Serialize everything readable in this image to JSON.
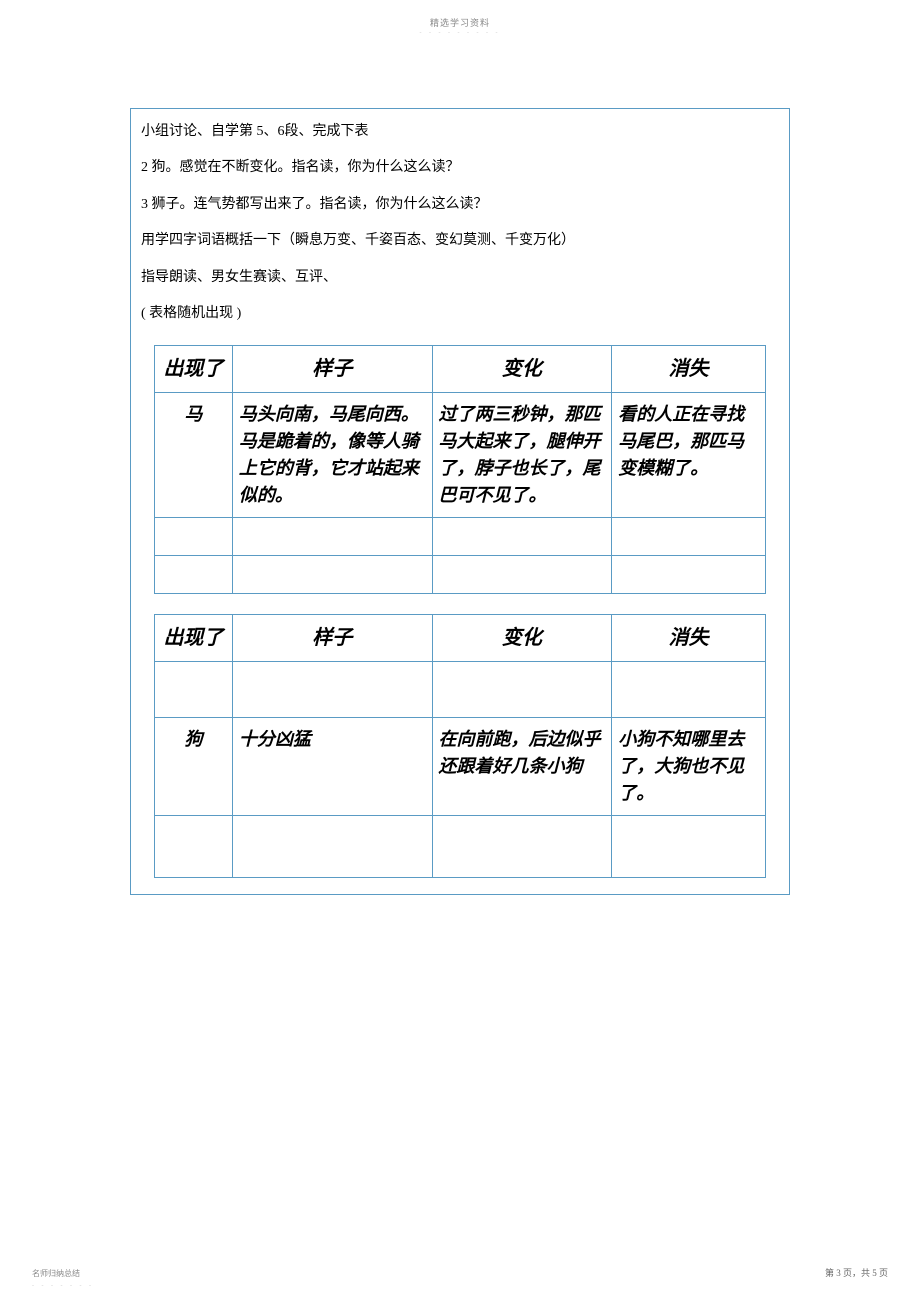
{
  "header": {
    "watermark": "精选学习资料",
    "dots": "- - - - - - - - -"
  },
  "instructions": {
    "line1": "小组讨论、自学第   5、6段、完成下表",
    "line2": "2 狗。感觉在不断变化。指名读，你为什么这么读？",
    "line3": "3 狮子。连气势都写出来了。指名读，你为什么这么读？",
    "line4": "用学四字词语概括一下（瞬息万变、千姿百态、变幻莫测、千变万化）",
    "line5": "指导朗读、男女生赛读、互评、",
    "line6": "( 表格随机出现  )"
  },
  "table_headers": {
    "col1": "出现了",
    "col2": "样子",
    "col3": "变化",
    "col4": "消失"
  },
  "table1": {
    "row1": {
      "col1": "马",
      "col2": "马头向南，马尾向西。马是跪着的，像等人骑上它的背，它才站起来似的。",
      "col3": "过了两三秒钟，那匹马大起来了，腿伸开了，脖子也长了，尾巴可不见了。",
      "col4": "看的人正在寻找马尾巴，那匹马变模糊了。"
    }
  },
  "table2": {
    "row1": {
      "col1": "狗",
      "col2": "十分凶猛",
      "col3": "在向前跑，后边似乎还跟着好几条小狗",
      "col4": "小狗不知哪里去了，大狗也不见了。"
    }
  },
  "footer": {
    "left": "名师归纳总结",
    "dots": "- - - - - - -",
    "right": "第 3 页，共 5 页"
  },
  "styling": {
    "border_color": "#5a9bc4",
    "text_color": "#000000",
    "watermark_color": "#888888",
    "background_color": "#ffffff",
    "body_font_size": 14,
    "table_font_size": 18,
    "header_font_size": 20
  }
}
